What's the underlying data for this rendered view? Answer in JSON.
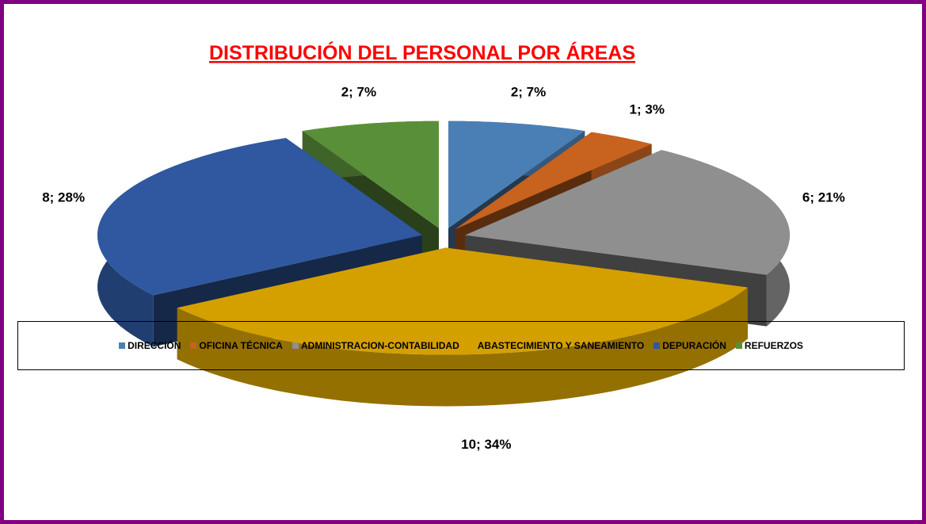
{
  "chart_data": {
    "type": "pie3d",
    "title": "DISTRIBUCIÓN DEL PERSONAL POR ÁREAS",
    "categories": [
      "DIRECCIÓN",
      "OFICINA TÉCNICA",
      "ADMINISTRACION-CONTABILIDAD",
      "ABASTECIMIENTO Y SANEAMIENTO",
      "DEPURACIÓN",
      "REFUERZOS"
    ],
    "values": [
      2,
      1,
      6,
      10,
      8,
      2
    ],
    "value_labels": [
      "2; 7%",
      "1; 3%",
      "6; 21%",
      "10; 34%",
      "8; 28%",
      "2; 7%"
    ],
    "colors": [
      "#4a7fb5",
      "#c8621f",
      "#8f8f8f",
      "#d4a000",
      "#2f58a0",
      "#5a8f3a"
    ],
    "legend": "bottom"
  }
}
